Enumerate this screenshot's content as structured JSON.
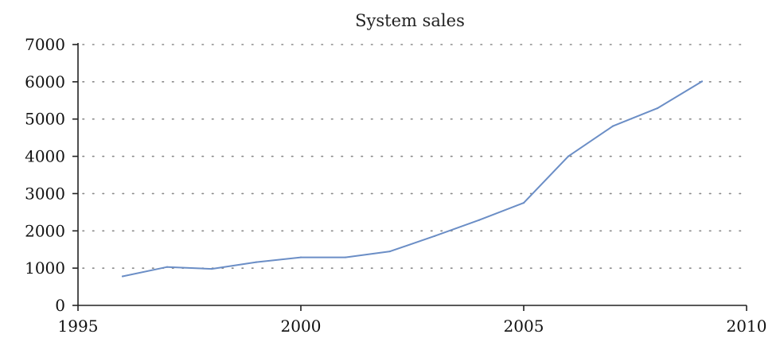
{
  "chart_data": {
    "type": "line",
    "title": "System sales",
    "xlabel": "",
    "ylabel": "",
    "xlim": [
      1995,
      2010
    ],
    "ylim": [
      0,
      7000
    ],
    "x_ticks": [
      1995,
      2000,
      2005,
      2010
    ],
    "y_ticks": [
      0,
      1000,
      2000,
      3000,
      4000,
      5000,
      6000,
      7000
    ],
    "grid": "horizontal-dotted",
    "legend": "none",
    "series": [
      {
        "color": "#6b8ec6",
        "x": [
          1996,
          1997,
          1998,
          1999,
          2000,
          2001,
          2002,
          2003,
          2004,
          2005,
          2006,
          2007,
          2008,
          2009
        ],
        "y": [
          780,
          1030,
          980,
          1160,
          1290,
          1290,
          1450,
          1860,
          2290,
          2750,
          4000,
          4810,
          5290,
          6010
        ]
      }
    ]
  }
}
